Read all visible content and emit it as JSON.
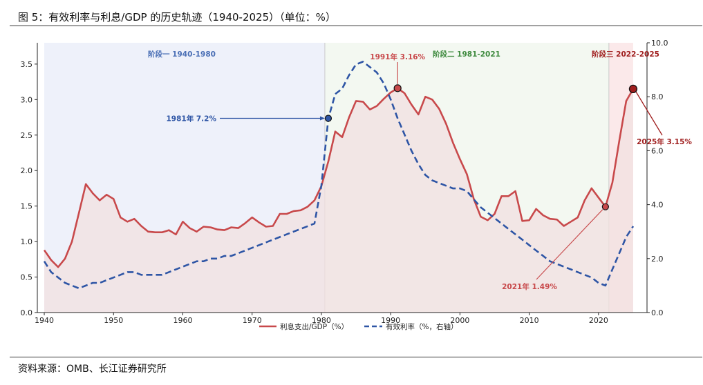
{
  "figure": {
    "title": "图 5：有效利率与利息/GDP 的历史轨迹（1940-2025）（单位：%）",
    "source": "资料来源：OMB、长江证券研究所"
  },
  "colors": {
    "interest": "#c8494b",
    "rate": "#2e55a5",
    "stage1_bg": "#eef1fa",
    "stage2_bg": "#f3f8f1",
    "stage3_bg": "#fbe9ea",
    "area": "#f1e0e0",
    "stage1_text": "#4a6fb5",
    "stage2_text": "#3e8a3e",
    "stage3_text": "#a01f1f",
    "annot_red": "#c8494b",
    "annot_blue": "#2e55a5",
    "annot_dark": "#a01f1f"
  },
  "chart_data": {
    "type": "line",
    "x_range": [
      1939,
      2027
    ],
    "y_left_range": [
      0,
      3.8
    ],
    "y_right_range": [
      0,
      10
    ],
    "x_ticks": [
      1940,
      1950,
      1960,
      1970,
      1980,
      1990,
      2000,
      2010,
      2020
    ],
    "y_left_ticks": [
      "0.0",
      "0.5",
      "1.0",
      "1.5",
      "2.0",
      "2.5",
      "3.0",
      "3.5"
    ],
    "y_right_ticks": [
      "0.0",
      "2.0",
      "4.0",
      "6.0",
      "8.0",
      "10.0"
    ],
    "grid": false,
    "legend_position": "bottom-center",
    "stages": [
      {
        "label": "阶段一 1940-1980",
        "from": 1940,
        "to": 1980.5
      },
      {
        "label": "阶段二 1981-2021",
        "from": 1980.5,
        "to": 2021.5
      },
      {
        "label": "阶段三 2022-2025",
        "from": 2021.5,
        "to": 2025
      }
    ],
    "series": [
      {
        "name": "利息支出/GDP（%）",
        "axis": "left",
        "x": [
          1940,
          1941,
          1942,
          1943,
          1944,
          1945,
          1946,
          1947,
          1948,
          1949,
          1950,
          1951,
          1952,
          1953,
          1954,
          1955,
          1956,
          1957,
          1958,
          1959,
          1960,
          1961,
          1962,
          1963,
          1964,
          1965,
          1966,
          1967,
          1968,
          1969,
          1970,
          1971,
          1972,
          1973,
          1974,
          1975,
          1976,
          1977,
          1978,
          1979,
          1980,
          1981,
          1982,
          1983,
          1984,
          1985,
          1986,
          1987,
          1988,
          1989,
          1990,
          1991,
          1992,
          1993,
          1994,
          1995,
          1996,
          1997,
          1998,
          1999,
          2000,
          2001,
          2002,
          2003,
          2004,
          2005,
          2006,
          2007,
          2008,
          2009,
          2010,
          2011,
          2012,
          2013,
          2014,
          2015,
          2016,
          2017,
          2018,
          2019,
          2020,
          2021,
          2022,
          2023,
          2024,
          2025
        ],
        "values": [
          0.88,
          0.74,
          0.64,
          0.76,
          1.0,
          1.4,
          1.81,
          1.68,
          1.58,
          1.66,
          1.6,
          1.34,
          1.28,
          1.32,
          1.22,
          1.14,
          1.13,
          1.13,
          1.16,
          1.1,
          1.28,
          1.19,
          1.14,
          1.21,
          1.2,
          1.17,
          1.16,
          1.2,
          1.19,
          1.26,
          1.34,
          1.27,
          1.21,
          1.22,
          1.39,
          1.39,
          1.43,
          1.44,
          1.49,
          1.58,
          1.78,
          2.13,
          2.55,
          2.47,
          2.75,
          2.98,
          2.97,
          2.86,
          2.91,
          3.01,
          3.1,
          3.16,
          3.09,
          2.93,
          2.79,
          3.04,
          3.0,
          2.87,
          2.66,
          2.39,
          2.16,
          1.95,
          1.6,
          1.35,
          1.3,
          1.39,
          1.64,
          1.64,
          1.71,
          1.29,
          1.3,
          1.46,
          1.37,
          1.32,
          1.31,
          1.22,
          1.28,
          1.34,
          1.58,
          1.75,
          1.62,
          1.49,
          1.83,
          2.42,
          2.98,
          3.15
        ]
      },
      {
        "name": "有效利率（%，右轴）",
        "axis": "right",
        "x": [
          1940,
          1941,
          1942,
          1943,
          1944,
          1945,
          1946,
          1947,
          1948,
          1949,
          1950,
          1951,
          1952,
          1953,
          1954,
          1955,
          1956,
          1957,
          1958,
          1959,
          1960,
          1961,
          1962,
          1963,
          1964,
          1965,
          1966,
          1967,
          1968,
          1969,
          1970,
          1971,
          1972,
          1973,
          1974,
          1975,
          1976,
          1977,
          1978,
          1979,
          1980,
          1981,
          1982,
          1983,
          1984,
          1985,
          1986,
          1987,
          1988,
          1989,
          1990,
          1991,
          1992,
          1993,
          1994,
          1995,
          1996,
          1997,
          1998,
          1999,
          2000,
          2001,
          2002,
          2003,
          2004,
          2005,
          2006,
          2007,
          2008,
          2009,
          2010,
          2011,
          2012,
          2013,
          2014,
          2015,
          2016,
          2017,
          2018,
          2019,
          2020,
          2021,
          2022,
          2023,
          2024,
          2025
        ],
        "values": [
          1.9,
          1.5,
          1.3,
          1.1,
          1.0,
          0.9,
          1.0,
          1.1,
          1.1,
          1.2,
          1.3,
          1.4,
          1.5,
          1.5,
          1.4,
          1.4,
          1.4,
          1.4,
          1.5,
          1.6,
          1.7,
          1.8,
          1.9,
          1.9,
          2.0,
          2.0,
          2.1,
          2.1,
          2.2,
          2.3,
          2.4,
          2.5,
          2.6,
          2.7,
          2.8,
          2.9,
          3.0,
          3.1,
          3.2,
          3.3,
          4.7,
          7.2,
          8.1,
          8.3,
          8.8,
          9.2,
          9.3,
          9.1,
          8.9,
          8.5,
          7.9,
          7.2,
          6.6,
          6.0,
          5.5,
          5.1,
          4.9,
          4.8,
          4.7,
          4.6,
          4.6,
          4.5,
          4.2,
          3.9,
          3.7,
          3.5,
          3.3,
          3.1,
          2.9,
          2.7,
          2.5,
          2.3,
          2.1,
          1.9,
          1.8,
          1.7,
          1.6,
          1.5,
          1.4,
          1.3,
          1.1,
          1.0,
          1.6,
          2.2,
          2.8,
          3.2
        ]
      }
    ],
    "annotations": [
      {
        "label": "1981年  7.2%",
        "x": 1981,
        "value": 7.2,
        "axis": "right",
        "color_key": "annot_blue"
      },
      {
        "label": "1991年  3.16%",
        "x": 1991,
        "value": 3.16,
        "axis": "left",
        "color_key": "annot_red"
      },
      {
        "label": "2021年  1.49%",
        "x": 2021,
        "value": 1.49,
        "axis": "left",
        "color_key": "annot_red"
      },
      {
        "label": "2025年  3.15%",
        "x": 2025,
        "value": 3.15,
        "axis": "left",
        "color_key": "annot_dark"
      }
    ]
  }
}
